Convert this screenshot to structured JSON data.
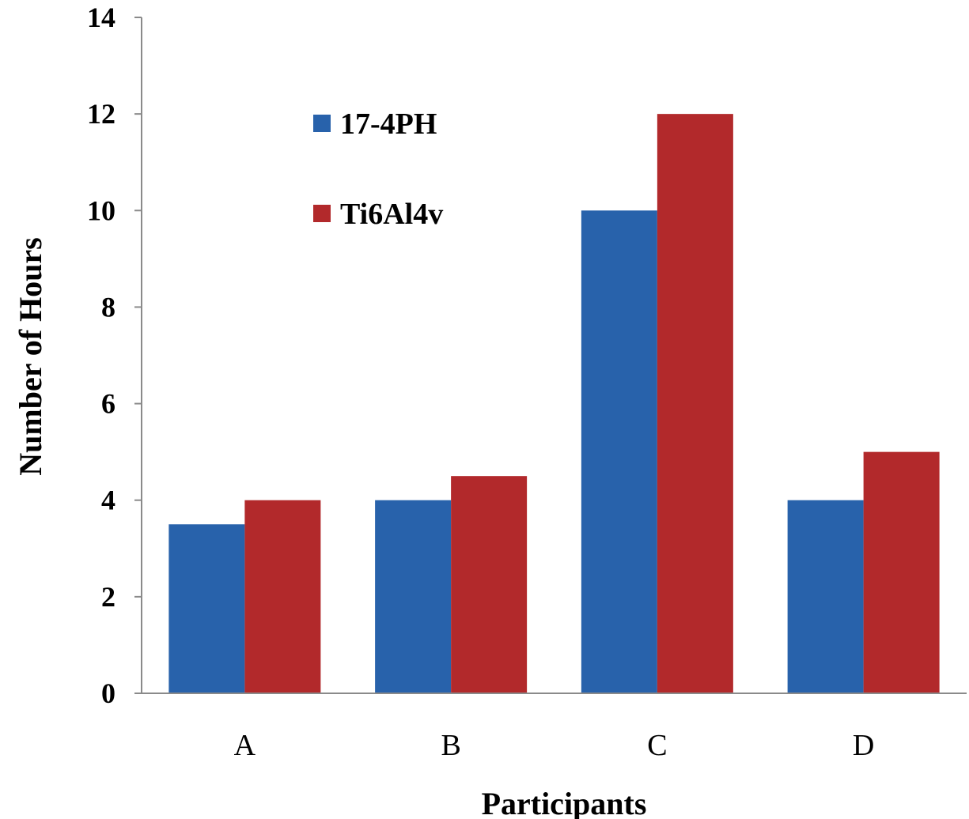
{
  "chart_data": {
    "type": "bar",
    "categories": [
      "A",
      "B",
      "C",
      "D"
    ],
    "series": [
      {
        "name": "17-4PH",
        "values": [
          3.5,
          4,
          10,
          4
        ],
        "color": "#2862ab"
      },
      {
        "name": "Ti6Al4v",
        "values": [
          4,
          4.5,
          12,
          5
        ],
        "color": "#b2292b"
      }
    ],
    "title": "",
    "xlabel": "Participants",
    "ylabel": "Number of Hours",
    "ylim": [
      0,
      14
    ],
    "yticks": [
      "0",
      "2",
      "4",
      "6",
      "8",
      "10",
      "12",
      "14"
    ],
    "grid": false,
    "legend_position": "top-left"
  }
}
